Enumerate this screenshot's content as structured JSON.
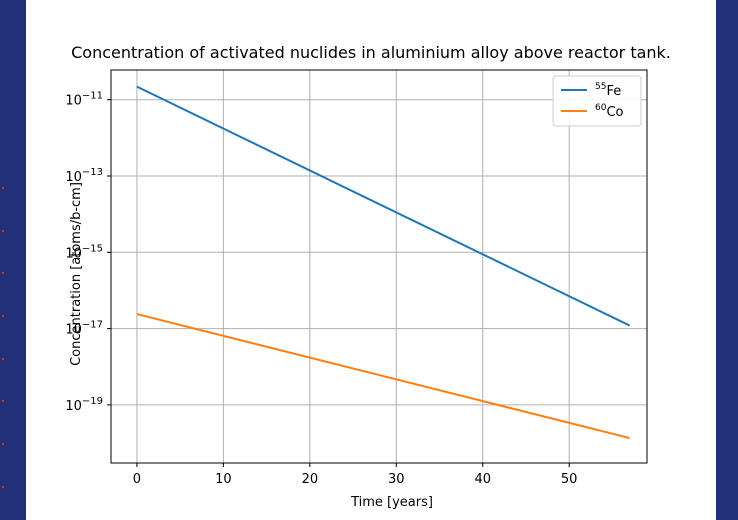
{
  "colors": {
    "background": "#22307a",
    "figure": "#ffffff",
    "grid": "#b0b0b0",
    "fe55": "#1f77b4",
    "co60": "#ff7f0e"
  },
  "chart_data": {
    "type": "line",
    "title": "Concentration of activated nuclides in aluminium alloy above reactor tank.",
    "xlabel": "Time [years]",
    "ylabel": "Concentration [atoms/b-cm]",
    "xlim": [
      -3,
      59
    ],
    "ylim": [
      3e-21,
      6e-11
    ],
    "yscale": "log",
    "grid": true,
    "legend_position": "top-right",
    "x_ticks": [
      0,
      10,
      20,
      30,
      40,
      50
    ],
    "y_ticks": [
      {
        "value": 1e-11,
        "base": "10",
        "exp": "−11"
      },
      {
        "value": 1e-13,
        "base": "10",
        "exp": "−13"
      },
      {
        "value": 1e-15,
        "base": "10",
        "exp": "−15"
      },
      {
        "value": 1e-17,
        "base": "10",
        "exp": "−17"
      },
      {
        "value": 1e-19,
        "base": "10",
        "exp": "−19"
      }
    ],
    "series": [
      {
        "key": "fe55",
        "name_sup": "55",
        "name_sym": "Fe",
        "color": "#1f77b4",
        "x": [
          0,
          57
        ],
        "y": [
          2.2e-11,
          1.2e-17
        ]
      },
      {
        "key": "co60",
        "name_sup": "60",
        "name_sym": "Co",
        "color": "#ff7f0e",
        "x": [
          0,
          57
        ],
        "y": [
          2.4e-17,
          1.35e-20
        ]
      }
    ]
  }
}
